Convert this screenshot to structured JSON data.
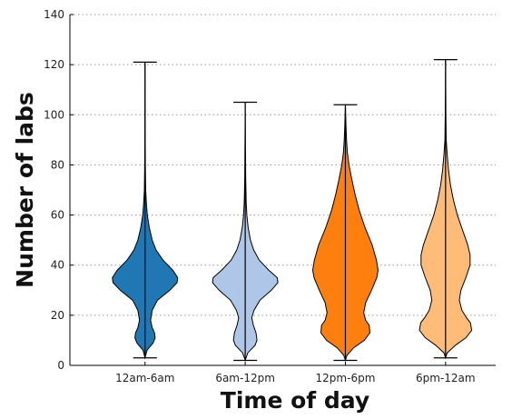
{
  "chart_data": {
    "type": "violin",
    "xlabel": "Time of day",
    "ylabel": "Number of labs",
    "ylim": [
      0,
      140
    ],
    "yticks": [
      0,
      20,
      40,
      60,
      80,
      100,
      120,
      140
    ],
    "grid": "horizontal dotted",
    "categories": [
      "12am-6am",
      "6am-12pm",
      "12pm-6pm",
      "6pm-12am"
    ],
    "colors": [
      "#1f77b4",
      "#aec7e8",
      "#ff7f0e",
      "#ffbb78"
    ],
    "series": [
      {
        "category": "12am-6am",
        "min": 3,
        "max": 121,
        "density": [
          [
            3,
            0.0
          ],
          [
            6,
            0.06
          ],
          [
            9,
            0.25
          ],
          [
            11,
            0.31
          ],
          [
            13,
            0.29
          ],
          [
            15,
            0.22
          ],
          [
            18,
            0.17
          ],
          [
            22,
            0.22
          ],
          [
            26,
            0.38
          ],
          [
            30,
            0.76
          ],
          [
            33,
            0.98
          ],
          [
            35,
            1.0
          ],
          [
            38,
            0.85
          ],
          [
            42,
            0.55
          ],
          [
            46,
            0.34
          ],
          [
            50,
            0.22
          ],
          [
            55,
            0.13
          ],
          [
            60,
            0.07
          ],
          [
            65,
            0.04
          ],
          [
            70,
            0.02
          ],
          [
            80,
            0.01
          ],
          [
            95,
            0.005
          ],
          [
            121,
            0.0
          ]
        ]
      },
      {
        "category": "6am-12pm",
        "min": 2,
        "max": 105,
        "density": [
          [
            2,
            0.0
          ],
          [
            5,
            0.08
          ],
          [
            8,
            0.3
          ],
          [
            10,
            0.36
          ],
          [
            13,
            0.33
          ],
          [
            16,
            0.25
          ],
          [
            19,
            0.2
          ],
          [
            22,
            0.27
          ],
          [
            26,
            0.45
          ],
          [
            30,
            0.8
          ],
          [
            33,
            1.0
          ],
          [
            35,
            0.98
          ],
          [
            38,
            0.72
          ],
          [
            42,
            0.43
          ],
          [
            46,
            0.26
          ],
          [
            50,
            0.16
          ],
          [
            55,
            0.09
          ],
          [
            60,
            0.05
          ],
          [
            65,
            0.03
          ],
          [
            75,
            0.015
          ],
          [
            90,
            0.006
          ],
          [
            105,
            0.0
          ]
        ]
      },
      {
        "category": "12pm-6pm",
        "min": 2,
        "max": 104,
        "density": [
          [
            2,
            0.0
          ],
          [
            4,
            0.05
          ],
          [
            7,
            0.25
          ],
          [
            10,
            0.58
          ],
          [
            13,
            0.75
          ],
          [
            16,
            0.73
          ],
          [
            18,
            0.62
          ],
          [
            21,
            0.56
          ],
          [
            25,
            0.62
          ],
          [
            30,
            0.8
          ],
          [
            35,
            0.96
          ],
          [
            38,
            1.0
          ],
          [
            42,
            0.95
          ],
          [
            48,
            0.82
          ],
          [
            55,
            0.6
          ],
          [
            62,
            0.42
          ],
          [
            68,
            0.3
          ],
          [
            74,
            0.2
          ],
          [
            80,
            0.11
          ],
          [
            85,
            0.06
          ],
          [
            90,
            0.035
          ],
          [
            95,
            0.02
          ],
          [
            104,
            0.0
          ]
        ]
      },
      {
        "category": "6pm-12am",
        "min": 3,
        "max": 122,
        "density": [
          [
            3,
            0.0
          ],
          [
            5,
            0.05
          ],
          [
            8,
            0.3
          ],
          [
            11,
            0.62
          ],
          [
            14,
            0.8
          ],
          [
            17,
            0.76
          ],
          [
            19,
            0.64
          ],
          [
            22,
            0.5
          ],
          [
            26,
            0.42
          ],
          [
            30,
            0.47
          ],
          [
            35,
            0.62
          ],
          [
            40,
            0.75
          ],
          [
            44,
            0.75
          ],
          [
            48,
            0.68
          ],
          [
            54,
            0.52
          ],
          [
            60,
            0.36
          ],
          [
            66,
            0.24
          ],
          [
            72,
            0.15
          ],
          [
            78,
            0.09
          ],
          [
            84,
            0.05
          ],
          [
            90,
            0.02
          ],
          [
            100,
            0.01
          ],
          [
            122,
            0.0
          ]
        ]
      }
    ]
  }
}
